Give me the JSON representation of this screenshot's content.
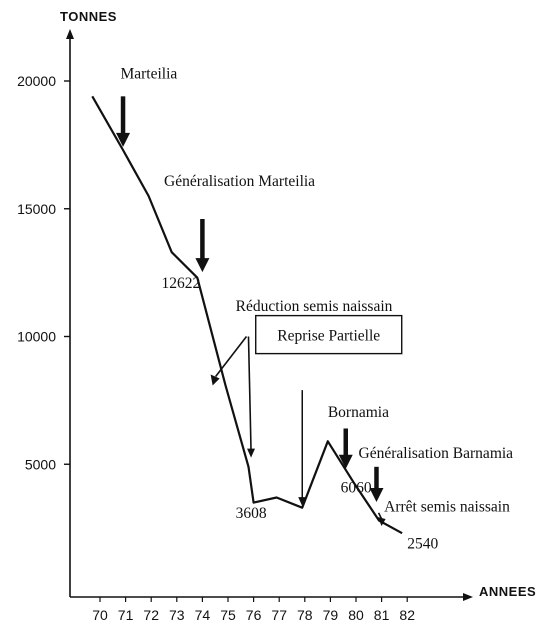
{
  "chart_data": {
    "type": "line",
    "ylabel": "TONNES",
    "xlabel": "ANNEES",
    "categories": [
      "70",
      "71",
      "72",
      "73",
      "74",
      "75",
      "76",
      "77",
      "78",
      "79",
      "80",
      "81",
      "82"
    ],
    "yticks": [
      5000,
      10000,
      15000,
      20000
    ],
    "ylim": [
      0,
      21500
    ],
    "xlim": [
      69.1,
      84.2
    ],
    "grid": false,
    "series": [
      {
        "points": [
          [
            69.7,
            19400
          ],
          [
            70.9,
            17300
          ],
          [
            71.9,
            15500
          ],
          [
            72.8,
            13300
          ],
          [
            73.8,
            12300
          ],
          [
            74.9,
            8100
          ],
          [
            75.8,
            4900
          ],
          [
            76.0,
            3500
          ],
          [
            76.9,
            3700
          ],
          [
            77.9,
            3300
          ],
          [
            78.9,
            5900
          ],
          [
            79.9,
            4300
          ],
          [
            80.9,
            2800
          ],
          [
            81.8,
            2300
          ]
        ]
      }
    ],
    "value_labels": [
      {
        "text": "12622",
        "x": 72.4,
        "y": 11900
      },
      {
        "text": "3608",
        "x": 75.3,
        "y": 2900
      },
      {
        "text": "6060",
        "x": 79.4,
        "y": 3900
      },
      {
        "text": "2540",
        "x": 82.0,
        "y": 1700
      }
    ],
    "annotations": [
      {
        "text": "Marteilia",
        "label_x": 70.8,
        "label_y": 20100,
        "arrow_x": 70.9,
        "arrow_from": 19400,
        "arrow_to": 17500,
        "style": "bold-arrow"
      },
      {
        "text": "Généralisation Marteilia",
        "label_x": 72.5,
        "label_y": 15900,
        "arrow_x": 74.0,
        "arrow_from": 14600,
        "arrow_to": 12600,
        "style": "bold-arrow"
      },
      {
        "text": "Réduction semis naissain",
        "label_x": 75.3,
        "label_y": 11000,
        "arrow_x": 75.8,
        "arrow_from": 10000,
        "style": "forked-arrow"
      },
      {
        "text": "Reprise Partielle",
        "label_x": 76.2,
        "label_y": 9800,
        "arrow_x": 77.9,
        "arrow_from": 7900,
        "arrow_to": 3400,
        "style": "boxed-thin-arrow"
      },
      {
        "text": "Bornamia",
        "label_x": 78.9,
        "label_y": 6850,
        "arrow_x": 79.6,
        "arrow_from": 6400,
        "arrow_to": 4900,
        "style": "bold-arrow"
      },
      {
        "text": "Généralisation Barnamia",
        "label_x": 80.1,
        "label_y": 5250,
        "arrow_x": 80.8,
        "arrow_from": 4900,
        "arrow_to": 3600,
        "style": "bold-arrow"
      },
      {
        "text": "Arrêt semis naissain",
        "label_x": 81.1,
        "label_y": 3150,
        "arrow_x": 81.0,
        "arrow_from": 3100,
        "arrow_to": 2700,
        "style": "small-arrow"
      }
    ]
  }
}
